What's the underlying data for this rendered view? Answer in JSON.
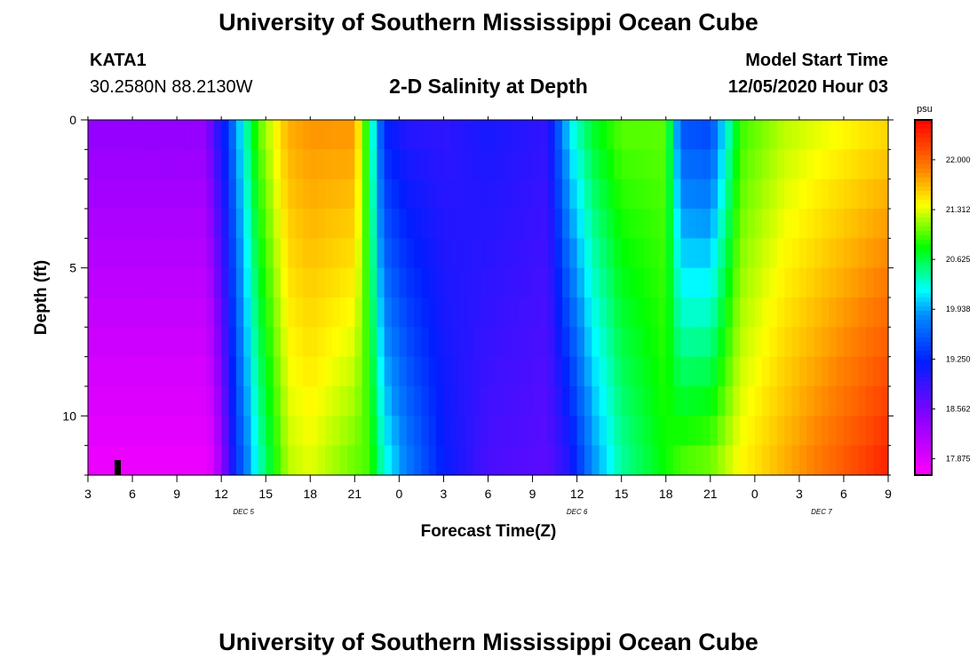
{
  "header": {
    "title_top": "University of Southern Mississippi Ocean Cube",
    "title_bottom": "University of Southern Mississippi Ocean Cube",
    "station_id": "KATA1",
    "coordinates": "30.2580N 88.2130W",
    "plot_title": "2-D Salinity at Depth",
    "model_start_label": "Model Start Time",
    "model_start_value": "12/05/2020 Hour 03"
  },
  "chart_data": {
    "type": "heatmap",
    "title": "2-D Salinity at Depth",
    "xlabel": "Forecast Time(Z)",
    "ylabel": "Depth (ft)",
    "x_range_hours": [
      0,
      54
    ],
    "y_range_ft": [
      0,
      12
    ],
    "x_tick_labels": [
      "3",
      "6",
      "9",
      "12",
      "15",
      "18",
      "21",
      "0",
      "3",
      "6",
      "9",
      "12",
      "15",
      "18",
      "21",
      "0",
      "3",
      "6",
      "9"
    ],
    "y_ticks": [
      0,
      5,
      10
    ],
    "y_tick_labels": [
      "0",
      "5",
      "10"
    ],
    "date_labels": [
      {
        "text": "DEC 5",
        "hour": 10.5
      },
      {
        "text": "DEC 6",
        "hour": 33
      },
      {
        "text": "DEC 7",
        "hour": 49.5
      }
    ],
    "depth_levels_ft": [
      0.5,
      1.5,
      2.5,
      3.5,
      4.5,
      5.5,
      6.5,
      7.5,
      8.5,
      9.5,
      10.5,
      11.5
    ],
    "colorbar": {
      "unit": "psu",
      "min": 17.65,
      "max": 22.55,
      "ticks": [
        "17.875",
        "18.562",
        "19.250",
        "19.938",
        "20.625",
        "21.312",
        "22.000"
      ]
    },
    "salinity_profiles_psu": [
      {
        "hour": 0,
        "surface": 18.4,
        "bottom": 17.75
      },
      {
        "hour": 8,
        "surface": 18.4,
        "bottom": 17.75
      },
      {
        "hour": 8.5,
        "surface": 18.85,
        "bottom": 17.9
      },
      {
        "hour": 9.5,
        "surface": 19.4,
        "bottom": 18.8
      },
      {
        "hour": 10,
        "surface": 19.9,
        "bottom": 19.3
      },
      {
        "hour": 11.5,
        "surface": 21.0,
        "bottom": 20.3
      },
      {
        "hour": 13.5,
        "surface": 21.7,
        "bottom": 21.2
      },
      {
        "hour": 15,
        "surface": 21.8,
        "bottom": 21.3
      },
      {
        "hour": 18,
        "surface": 21.8,
        "bottom": 21.0
      },
      {
        "hour": 19,
        "surface": 20.6,
        "bottom": 20.95
      },
      {
        "hour": 20,
        "surface": 19.2,
        "bottom": 20.3
      },
      {
        "hour": 21.5,
        "surface": 19.0,
        "bottom": 19.8
      },
      {
        "hour": 24,
        "surface": 18.95,
        "bottom": 19.2
      },
      {
        "hour": 27,
        "surface": 19.1,
        "bottom": 18.8
      },
      {
        "hour": 31,
        "surface": 18.95,
        "bottom": 18.7
      },
      {
        "hour": 32.5,
        "surface": 20.2,
        "bottom": 19.0
      },
      {
        "hour": 34,
        "surface": 20.7,
        "bottom": 19.8
      },
      {
        "hour": 36,
        "surface": 21.0,
        "bottom": 20.4
      },
      {
        "hour": 39,
        "surface": 21.0,
        "bottom": 20.8
      },
      {
        "hour": 40,
        "surface": 19.5,
        "bottom": 21.0
      },
      {
        "hour": 42,
        "surface": 19.4,
        "bottom": 21.1
      },
      {
        "hour": 44,
        "surface": 20.9,
        "bottom": 21.4
      },
      {
        "hour": 47,
        "surface": 21.2,
        "bottom": 21.7
      },
      {
        "hour": 54,
        "surface": 21.5,
        "bottom": 22.4
      }
    ]
  }
}
